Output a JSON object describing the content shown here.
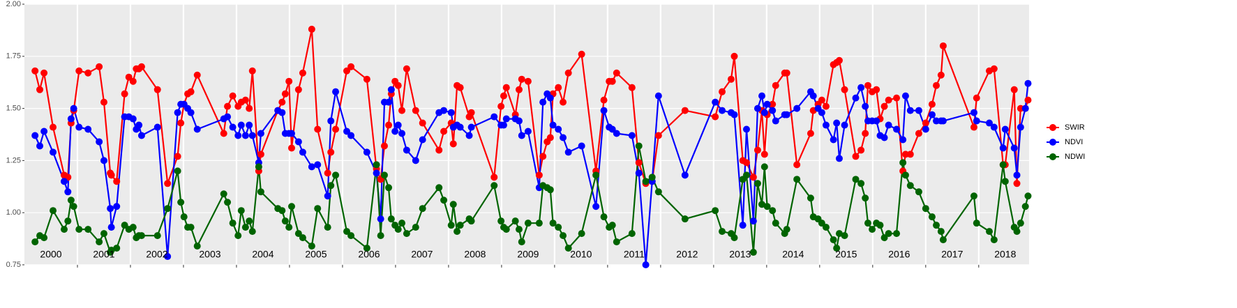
{
  "chart_data": {
    "type": "line",
    "x": [
      2000.2,
      2000.29,
      2000.37,
      2000.54,
      2000.75,
      2000.82,
      2000.88,
      2000.93,
      2001.03,
      2001.2,
      2001.41,
      2001.5,
      2001.62,
      2001.64,
      2001.74,
      2001.89,
      2001.97,
      2002.05,
      2002.11,
      2002.16,
      2002.21,
      2002.51,
      2002.7,
      2002.89,
      2002.95,
      2003.01,
      2003.08,
      2003.14,
      2003.26,
      2003.76,
      2003.83,
      2003.93,
      2004.03,
      2004.09,
      2004.17,
      2004.24,
      2004.3,
      2004.42,
      2004.46,
      2004.78,
      2004.86,
      2004.92,
      2004.99,
      2005.04,
      2005.17,
      2005.25,
      2005.42,
      2005.53,
      2005.72,
      2005.78,
      2005.87,
      2006.08,
      2006.16,
      2006.46,
      2006.64,
      2006.72,
      2006.79,
      2006.87,
      2006.92,
      2006.99,
      2007.05,
      2007.12,
      2007.21,
      2007.38,
      2007.51,
      2007.82,
      2007.91,
      2008.05,
      2008.09,
      2008.16,
      2008.22,
      2008.39,
      2008.43,
      2008.86,
      2008.99,
      2009.04,
      2009.09,
      2009.26,
      2009.33,
      2009.38,
      2009.5,
      2009.71,
      2009.78,
      2009.86,
      2009.92,
      2009.97,
      2010.07,
      2010.16,
      2010.26,
      2010.51,
      2010.78,
      2010.93,
      2011.03,
      2011.09,
      2011.17,
      2011.46,
      2011.59,
      2011.72,
      2011.84,
      2011.96,
      2012.46,
      2013.03,
      2013.16,
      2013.33,
      2013.39,
      2013.55,
      2013.62,
      2013.75,
      2013.83,
      2013.91,
      2013.96,
      2014.01,
      2014.11,
      2014.17,
      2014.34,
      2014.38,
      2014.57,
      2014.83,
      2014.88,
      2014.97,
      2015.04,
      2015.12,
      2015.26,
      2015.32,
      2015.37,
      2015.47,
      2015.68,
      2015.78,
      2015.86,
      2015.91,
      2015.99,
      2016.07,
      2016.14,
      2016.22,
      2016.3,
      2016.45,
      2016.57,
      2016.62,
      2016.71,
      2016.87,
      2017.0,
      2017.12,
      2017.2,
      2017.29,
      2017.33,
      2017.91,
      2017.96,
      2018.2,
      2018.29,
      2018.46,
      2018.5,
      2018.67,
      2018.72,
      2018.79,
      2018.88,
      2018.93
    ],
    "series": [
      {
        "name": "SWIR",
        "color": "#ff0000",
        "values": [
          1.68,
          1.59,
          1.67,
          1.41,
          1.18,
          1.17,
          1.43,
          1.49,
          1.68,
          1.67,
          1.7,
          1.53,
          1.19,
          1.18,
          1.15,
          1.57,
          1.65,
          1.63,
          1.69,
          1.69,
          1.7,
          1.59,
          1.14,
          1.27,
          1.43,
          1.52,
          1.57,
          1.58,
          1.66,
          1.38,
          1.51,
          1.56,
          1.51,
          1.53,
          1.54,
          1.5,
          1.68,
          1.2,
          1.28,
          1.49,
          1.53,
          1.57,
          1.63,
          1.31,
          1.59,
          1.67,
          1.88,
          1.4,
          1.19,
          1.29,
          1.4,
          1.68,
          1.7,
          1.64,
          1.21,
          1.16,
          1.32,
          1.42,
          1.57,
          1.63,
          1.61,
          1.49,
          1.69,
          1.49,
          1.43,
          1.3,
          1.39,
          1.43,
          1.33,
          1.61,
          1.6,
          1.46,
          1.48,
          1.17,
          1.51,
          1.56,
          1.6,
          1.47,
          1.59,
          1.64,
          1.63,
          1.18,
          1.27,
          1.34,
          1.36,
          1.57,
          1.6,
          1.53,
          1.67,
          1.76,
          1.2,
          1.54,
          1.63,
          1.63,
          1.67,
          1.6,
          1.24,
          1.14,
          1.15,
          1.37,
          1.49,
          1.46,
          1.58,
          1.64,
          1.75,
          1.25,
          1.24,
          1.17,
          1.3,
          1.49,
          1.28,
          1.47,
          1.52,
          1.61,
          1.67,
          1.67,
          1.23,
          1.38,
          1.49,
          1.52,
          1.54,
          1.51,
          1.71,
          1.72,
          1.73,
          1.59,
          1.27,
          1.3,
          1.38,
          1.61,
          1.58,
          1.59,
          1.45,
          1.51,
          1.54,
          1.55,
          1.2,
          1.28,
          1.28,
          1.38,
          1.43,
          1.52,
          1.61,
          1.66,
          1.8,
          1.41,
          1.55,
          1.68,
          1.69,
          1.23,
          1.23,
          1.59,
          1.14,
          1.5,
          1.5,
          1.54
        ]
      },
      {
        "name": "NDVI",
        "color": "#0000ff",
        "values": [
          1.37,
          1.32,
          1.39,
          1.29,
          1.15,
          1.1,
          1.45,
          1.5,
          1.41,
          1.4,
          1.34,
          1.25,
          1.02,
          0.93,
          1.03,
          1.46,
          1.46,
          1.45,
          1.4,
          1.42,
          1.37,
          1.41,
          0.79,
          1.48,
          1.52,
          1.52,
          1.5,
          1.48,
          1.4,
          1.45,
          1.46,
          1.41,
          1.37,
          1.42,
          1.37,
          1.42,
          1.37,
          1.24,
          1.38,
          1.49,
          1.48,
          1.38,
          1.38,
          1.38,
          1.34,
          1.29,
          1.22,
          1.23,
          1.08,
          1.44,
          1.58,
          1.39,
          1.37,
          1.29,
          1.19,
          0.97,
          1.53,
          1.53,
          1.59,
          1.39,
          1.42,
          1.38,
          1.3,
          1.25,
          1.35,
          1.48,
          1.49,
          1.48,
          1.41,
          1.42,
          1.41,
          1.37,
          1.41,
          1.46,
          1.42,
          1.42,
          1.45,
          1.45,
          1.44,
          1.37,
          1.39,
          1.12,
          1.53,
          1.57,
          1.55,
          1.42,
          1.4,
          1.36,
          1.29,
          1.32,
          1.03,
          1.49,
          1.41,
          1.4,
          1.38,
          1.37,
          1.19,
          0.75,
          1.15,
          1.56,
          1.18,
          1.53,
          1.49,
          1.48,
          1.47,
          0.94,
          1.4,
          0.96,
          1.5,
          1.56,
          1.48,
          1.52,
          1.49,
          1.44,
          1.47,
          1.47,
          1.5,
          1.58,
          1.56,
          1.5,
          1.48,
          1.42,
          1.35,
          1.43,
          1.26,
          1.42,
          1.55,
          1.6,
          1.51,
          1.44,
          1.44,
          1.44,
          1.37,
          1.36,
          1.42,
          1.4,
          1.35,
          1.56,
          1.49,
          1.49,
          1.4,
          1.47,
          1.44,
          1.44,
          1.44,
          1.48,
          1.44,
          1.43,
          1.41,
          1.31,
          1.4,
          1.31,
          1.18,
          1.41,
          1.5,
          1.62
        ]
      },
      {
        "name": "NDWI",
        "color": "#006400",
        "values": [
          0.86,
          0.89,
          0.88,
          1.01,
          0.92,
          0.96,
          1.06,
          1.03,
          0.92,
          0.92,
          0.86,
          0.9,
          0.81,
          0.82,
          0.83,
          0.94,
          0.92,
          0.93,
          0.88,
          0.89,
          0.89,
          0.89,
          1.02,
          1.2,
          1.05,
          0.98,
          0.93,
          0.93,
          0.84,
          1.09,
          1.05,
          0.95,
          0.89,
          1.01,
          0.93,
          0.96,
          0.91,
          1.22,
          1.1,
          1.02,
          1.01,
          0.96,
          0.93,
          1.03,
          0.9,
          0.88,
          0.84,
          1.02,
          0.93,
          1.13,
          1.18,
          0.91,
          0.89,
          0.83,
          1.23,
          0.89,
          1.18,
          1.12,
          0.97,
          0.94,
          0.92,
          0.95,
          0.9,
          0.93,
          1.02,
          1.12,
          1.06,
          0.94,
          1.04,
          0.91,
          0.94,
          0.97,
          0.96,
          1.13,
          0.96,
          0.93,
          0.92,
          0.96,
          0.92,
          0.86,
          0.95,
          0.95,
          1.13,
          1.12,
          1.11,
          0.95,
          0.93,
          0.89,
          0.83,
          0.9,
          1.18,
          0.98,
          0.93,
          0.94,
          0.86,
          0.9,
          1.32,
          1.15,
          1.17,
          1.1,
          0.97,
          1.01,
          0.91,
          0.9,
          0.88,
          1.16,
          1.18,
          0.81,
          1.14,
          1.04,
          1.22,
          1.03,
          1.01,
          0.95,
          0.9,
          0.92,
          1.16,
          1.07,
          0.98,
          0.97,
          0.95,
          0.93,
          0.87,
          0.83,
          0.9,
          0.89,
          1.16,
          1.14,
          1.07,
          0.95,
          0.92,
          0.95,
          0.94,
          0.88,
          0.9,
          0.9,
          1.24,
          1.18,
          1.13,
          1.1,
          1.02,
          0.98,
          0.94,
          0.91,
          0.87,
          1.08,
          0.95,
          0.91,
          0.87,
          1.23,
          1.15,
          0.93,
          0.91,
          0.95,
          1.03,
          1.08
        ]
      }
    ],
    "xlim": [
      2000,
      2018.95
    ],
    "xticks": [
      {
        "value": 2000.5,
        "label": "2000"
      },
      {
        "value": 2001.5,
        "label": "2001"
      },
      {
        "value": 2002.5,
        "label": "2002"
      },
      {
        "value": 2003.5,
        "label": "2003"
      },
      {
        "value": 2004.5,
        "label": "2004"
      },
      {
        "value": 2005.5,
        "label": "2005"
      },
      {
        "value": 2006.5,
        "label": "2006"
      },
      {
        "value": 2007.5,
        "label": "2007"
      },
      {
        "value": 2008.5,
        "label": "2008"
      },
      {
        "value": 2009.5,
        "label": "2009"
      },
      {
        "value": 2010.5,
        "label": "2010"
      },
      {
        "value": 2011.5,
        "label": "2011"
      },
      {
        "value": 2012.5,
        "label": "2012"
      },
      {
        "value": 2013.5,
        "label": "2013"
      },
      {
        "value": 2014.5,
        "label": "2014"
      },
      {
        "value": 2015.5,
        "label": "2015"
      },
      {
        "value": 2016.5,
        "label": "2016"
      },
      {
        "value": 2017.5,
        "label": "2017"
      },
      {
        "value": 2018.5,
        "label": "2018"
      }
    ],
    "xgrid": [
      2001,
      2002,
      2003,
      2004,
      2005,
      2006,
      2007,
      2008,
      2009,
      2010,
      2011,
      2012,
      2013,
      2014,
      2015,
      2016,
      2017,
      2018
    ],
    "ylim": [
      0.75,
      2.0
    ],
    "yticks": [
      0.75,
      {
        "value": 1,
        "label": "1.00"
      },
      1.25,
      {
        "value": 1.5,
        "label": "1.50"
      },
      1.75,
      {
        "value": 2,
        "label": "2.00"
      }
    ],
    "grid": true,
    "legend": "right"
  }
}
